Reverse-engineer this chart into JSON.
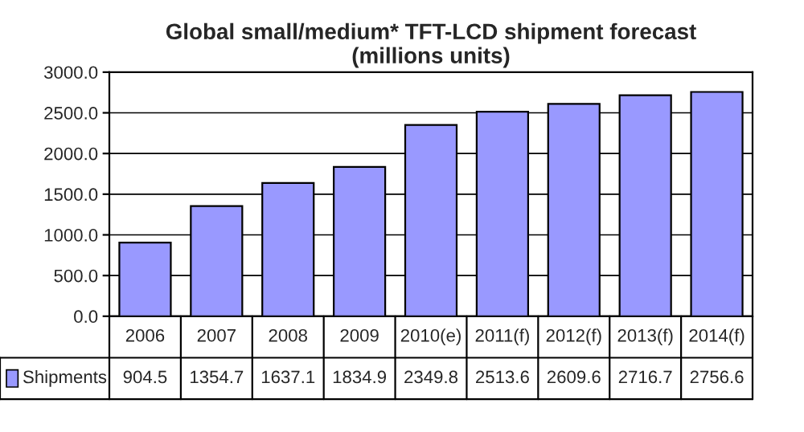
{
  "chart_data": {
    "type": "bar",
    "title": "Global small/medium* TFT-LCD shipment forecast\n(millions units)",
    "categories": [
      "2006",
      "2007",
      "2008",
      "2009",
      "2010(e)",
      "2011(f)",
      "2012(f)",
      "2013(f)",
      "2014(f)"
    ],
    "series": [
      {
        "name": "Shipments",
        "color": "#9999ff",
        "values": [
          904.5,
          1354.7,
          1637.1,
          1834.9,
          2349.8,
          2513.6,
          2609.6,
          2716.7,
          2756.6
        ]
      }
    ],
    "ylim": [
      0,
      3000
    ],
    "yticks": [
      {
        "value": 0,
        "label": "0.0"
      },
      {
        "value": 500,
        "label": "500.0"
      },
      {
        "value": 1000,
        "label": "1000.0"
      },
      {
        "value": 1500,
        "label": "1500.0"
      },
      {
        "value": 2000,
        "label": "2000.0"
      },
      {
        "value": 2500,
        "label": "2500.0"
      },
      {
        "value": 3000,
        "label": "3000.0"
      }
    ],
    "grid": "y",
    "data_labels": true,
    "legend": "bottom left"
  }
}
